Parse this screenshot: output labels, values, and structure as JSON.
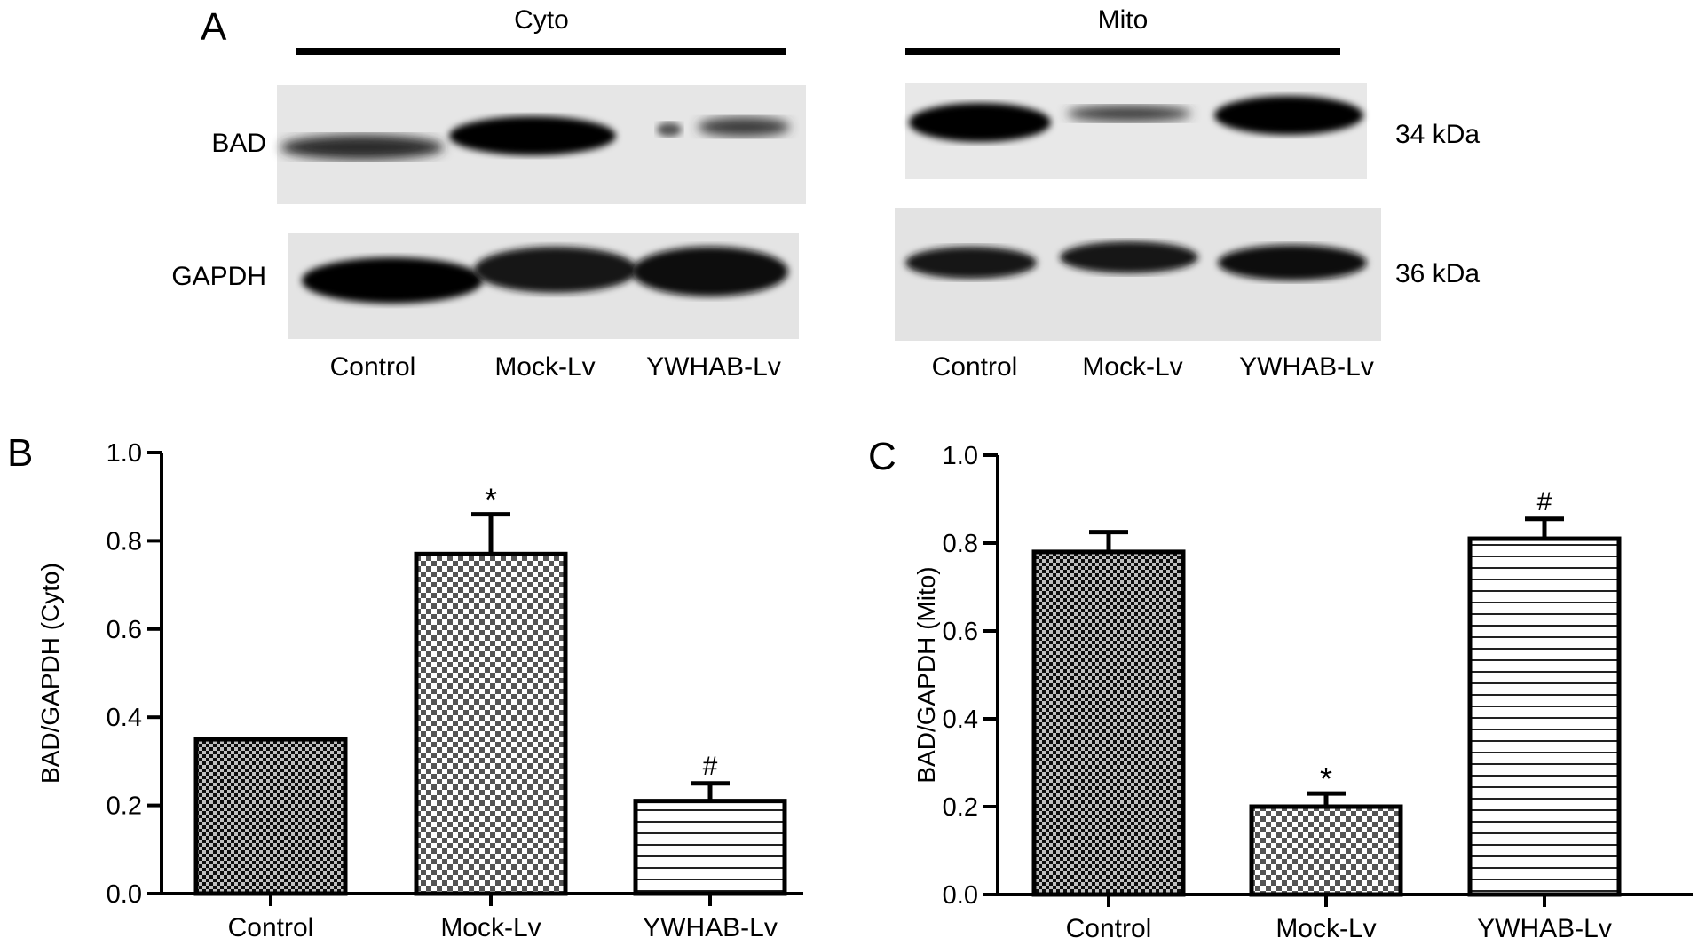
{
  "panels": {
    "a": "A",
    "b": "B",
    "c": "C"
  },
  "western_blot": {
    "groups": [
      {
        "title": "Cyto"
      },
      {
        "title": "Mito"
      }
    ],
    "proteins": [
      "BAD",
      "GAPDH"
    ],
    "kda": [
      "34 kDa",
      "36 kDa"
    ],
    "lanes": [
      "Control",
      "Mock-Lv",
      "YWHAB-Lv"
    ]
  },
  "chart_data": [
    {
      "type": "bar",
      "panel": "B",
      "categories": [
        "Control",
        "Mock-Lv",
        "YWHAB-Lv"
      ],
      "values": [
        0.35,
        0.77,
        0.21
      ],
      "errors": [
        0,
        0.09,
        0.04
      ],
      "annotations": [
        "",
        "*",
        "#"
      ],
      "patterns": [
        "fine-check",
        "check",
        "horizontal-lines"
      ],
      "ylabel": "BAD/GAPDH (Cyto)",
      "ylim": [
        0,
        1.0
      ],
      "yticks": [
        "0.0",
        "0.2",
        "0.4",
        "0.6",
        "0.8",
        "1.0"
      ],
      "grid": false
    },
    {
      "type": "bar",
      "panel": "C",
      "categories": [
        "Control",
        "Mock-Lv",
        "YWHAB-Lv"
      ],
      "values": [
        0.78,
        0.2,
        0.81
      ],
      "errors": [
        0.045,
        0.03,
        0.045
      ],
      "annotations": [
        "",
        "*",
        "#"
      ],
      "patterns": [
        "fine-check",
        "check",
        "horizontal-lines"
      ],
      "ylabel": "BAD/GAPDH (Mito)",
      "ylim": [
        0,
        1.0
      ],
      "yticks": [
        "0.0",
        "0.2",
        "0.4",
        "0.6",
        "0.8",
        "1.0"
      ],
      "grid": false
    }
  ]
}
